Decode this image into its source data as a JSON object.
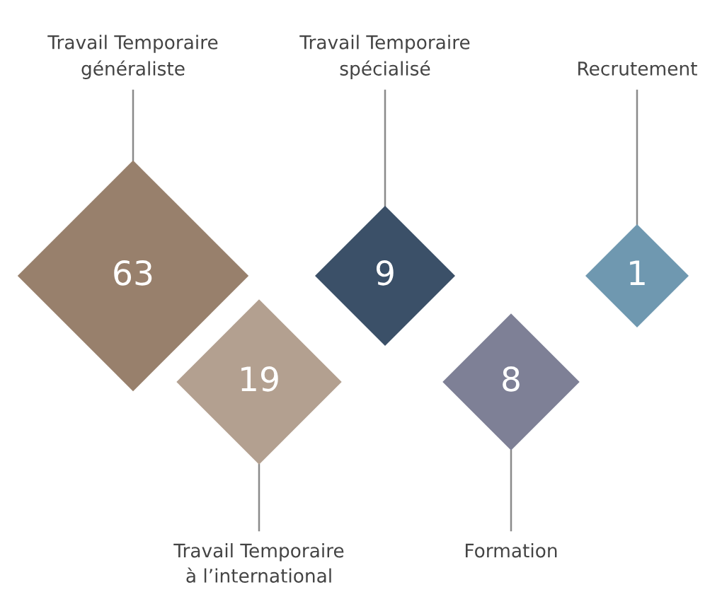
{
  "chart_data": {
    "type": "other",
    "categories": [
      "Travail Temporaire\ngénéraliste",
      "Travail Temporaire\nà l’international",
      "Travail Temporaire\nspécialisé",
      "Formation",
      "Recrutement"
    ],
    "values": [
      63,
      19,
      9,
      8,
      1
    ],
    "colors": [
      "#98806c",
      "#b3a090",
      "#3b5068",
      "#7e8096",
      "#6f98b0"
    ],
    "data_labels": true
  }
}
